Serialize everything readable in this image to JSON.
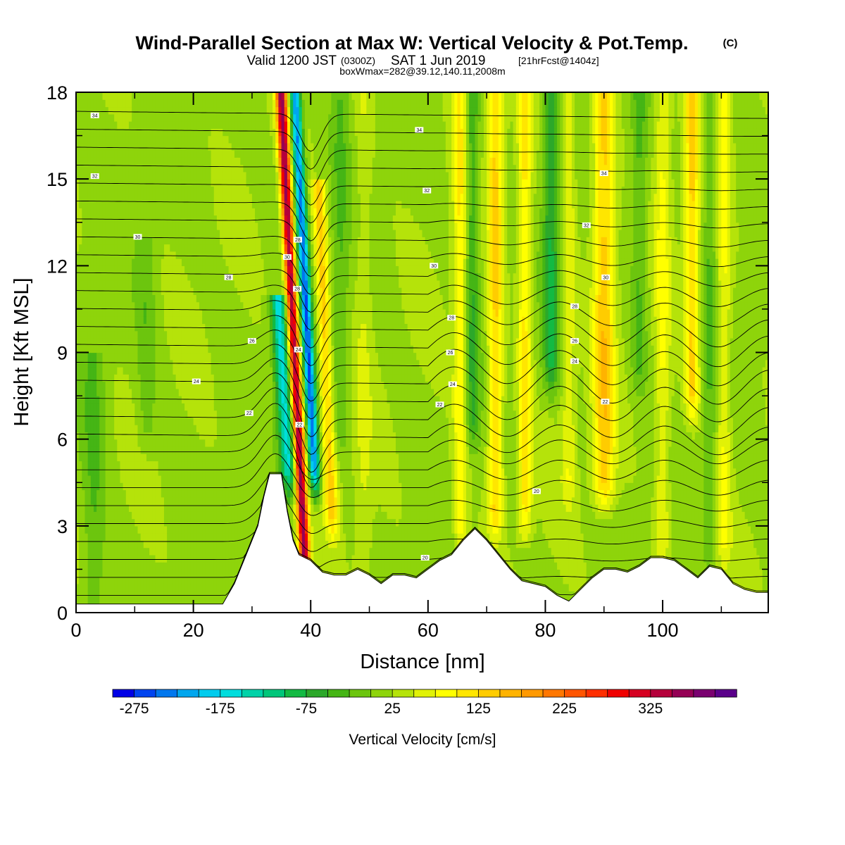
{
  "title": {
    "main": "Wind-Parallel Section at Max W: Vertical Velocity & Pot.Temp.",
    "copyright": "(C)",
    "valid_prefix": "Valid 1200 JST",
    "valid_utc": "(0300Z)",
    "valid_date": "SAT 1 Jun 2019",
    "forecast": "[21hrFcst@1404z]",
    "box_info": "boxWmax=282@39.12,140.11,2008m"
  },
  "chart_data": {
    "type": "heatmap",
    "xlabel": "Distance [nm]",
    "ylabel": "Height [Kft MSL]",
    "xlim": [
      0,
      118
    ],
    "ylim": [
      0,
      18
    ],
    "x_ticks": [
      0,
      20,
      40,
      60,
      80,
      100
    ],
    "y_ticks": [
      0,
      3,
      6,
      9,
      12,
      15,
      18
    ],
    "colorbar": {
      "title": "Vertical Velocity [cm/s]",
      "tick_labels": [
        "-275",
        "-175",
        "-75",
        "25",
        "125",
        "225",
        "325"
      ],
      "colors": [
        "#0000e6",
        "#0044f0",
        "#0077ee",
        "#00a6ee",
        "#00ccee",
        "#00dddd",
        "#00d2a8",
        "#00c67a",
        "#13ba43",
        "#2ca82a",
        "#45b515",
        "#6cc50e",
        "#8ed40b",
        "#b5e30a",
        "#e1f206",
        "#ffff00",
        "#ffe600",
        "#ffcc00",
        "#ffb300",
        "#ff9900",
        "#ff7700",
        "#ff5500",
        "#ff2f00",
        "#f00000",
        "#d60021",
        "#b5003b",
        "#950055",
        "#7a0070",
        "#5a008a"
      ]
    },
    "contour_labels": [
      "34",
      "32",
      "30",
      "28",
      "26",
      "24",
      "22",
      "20"
    ],
    "terrain": [
      [
        0,
        0.3
      ],
      [
        25,
        0.3
      ],
      [
        27,
        1
      ],
      [
        29,
        2
      ],
      [
        31,
        3
      ],
      [
        32,
        4
      ],
      [
        33,
        4.8
      ],
      [
        35,
        4.8
      ],
      [
        36,
        3.5
      ],
      [
        37,
        2.5
      ],
      [
        38,
        2
      ],
      [
        40,
        1.8
      ],
      [
        42,
        1.4
      ],
      [
        44,
        1.3
      ],
      [
        46,
        1.3
      ],
      [
        48,
        1.5
      ],
      [
        50,
        1.3
      ],
      [
        52,
        1
      ],
      [
        54,
        1.3
      ],
      [
        56,
        1.3
      ],
      [
        58,
        1.2
      ],
      [
        60,
        1.5
      ],
      [
        62,
        1.8
      ],
      [
        64,
        2
      ],
      [
        66,
        2.5
      ],
      [
        68,
        2.9
      ],
      [
        70,
        2.5
      ],
      [
        72,
        2
      ],
      [
        74,
        1.5
      ],
      [
        76,
        1.1
      ],
      [
        78,
        1
      ],
      [
        80,
        0.9
      ],
      [
        82,
        0.6
      ],
      [
        84,
        0.4
      ],
      [
        86,
        0.8
      ],
      [
        88,
        1.2
      ],
      [
        90,
        1.5
      ],
      [
        92,
        1.5
      ],
      [
        94,
        1.4
      ],
      [
        96,
        1.6
      ],
      [
        98,
        1.9
      ],
      [
        100,
        1.9
      ],
      [
        102,
        1.8
      ],
      [
        104,
        1.5
      ],
      [
        106,
        1.2
      ],
      [
        108,
        1.6
      ],
      [
        110,
        1.5
      ],
      [
        112,
        1
      ],
      [
        114,
        0.8
      ],
      [
        116,
        0.7
      ],
      [
        118,
        0.7
      ]
    ],
    "w_peaks": [
      {
        "x": 37.2,
        "y0": 1.5,
        "y1": 18,
        "slope": -0.25,
        "w": 340,
        "sigma": 0.9
      },
      {
        "x": 39.6,
        "y0": 4.5,
        "y1": 18,
        "slope": -0.25,
        "w": -260,
        "sigma": 0.9
      },
      {
        "x": 35.0,
        "y0": 4.5,
        "y1": 10,
        "slope": -0.3,
        "w": -180,
        "sigma": 1.3
      },
      {
        "x": 42.5,
        "y0": 3,
        "y1": 14,
        "slope": -0.2,
        "w": 120,
        "sigma": 1.1
      },
      {
        "x": 45.0,
        "y0": 6,
        "y1": 18,
        "slope": 0,
        "w": -40,
        "sigma": 1.5
      },
      {
        "x": 49.0,
        "y0": 0,
        "y1": 18,
        "slope": 0,
        "w": 30,
        "sigma": 1.5
      },
      {
        "x": 65.5,
        "y0": 2.5,
        "y1": 18,
        "slope": 0,
        "w": 80,
        "sigma": 1.2
      },
      {
        "x": 67.5,
        "y0": 6,
        "y1": 18,
        "slope": 0,
        "w": -70,
        "sigma": 1.2
      },
      {
        "x": 71.5,
        "y0": 3,
        "y1": 18,
        "slope": 0,
        "w": 110,
        "sigma": 1.3
      },
      {
        "x": 76.5,
        "y0": 3,
        "y1": 18,
        "slope": 0,
        "w": 90,
        "sigma": 1.2
      },
      {
        "x": 81.0,
        "y0": 8,
        "y1": 18,
        "slope": 0,
        "w": -90,
        "sigma": 1.3
      },
      {
        "x": 84.0,
        "y0": 4,
        "y1": 18,
        "slope": 0,
        "w": 50,
        "sigma": 1.2
      },
      {
        "x": 90.0,
        "y0": 4,
        "y1": 18,
        "slope": 0,
        "w": 120,
        "sigma": 1.8
      },
      {
        "x": 96.0,
        "y0": 8,
        "y1": 18,
        "slope": 0,
        "w": -50,
        "sigma": 1.3
      },
      {
        "x": 100.0,
        "y0": 2,
        "y1": 18,
        "slope": 0,
        "w": 60,
        "sigma": 1.3
      },
      {
        "x": 105.0,
        "y0": 7,
        "y1": 18,
        "slope": 0,
        "w": 110,
        "sigma": 1.2
      },
      {
        "x": 108.0,
        "y0": 2,
        "y1": 18,
        "slope": 0,
        "w": -40,
        "sigma": 1.1
      },
      {
        "x": 110.5,
        "y0": 2,
        "y1": 18,
        "slope": 0,
        "w": 60,
        "sigma": 1.2
      },
      {
        "x": 12.0,
        "y0": 6,
        "y1": 12,
        "slope": 0,
        "w": -35,
        "sigma": 1.5
      },
      {
        "x": 3.0,
        "y0": 0,
        "y1": 8,
        "slope": 0,
        "w": -45,
        "sigma": 2.0
      }
    ]
  }
}
